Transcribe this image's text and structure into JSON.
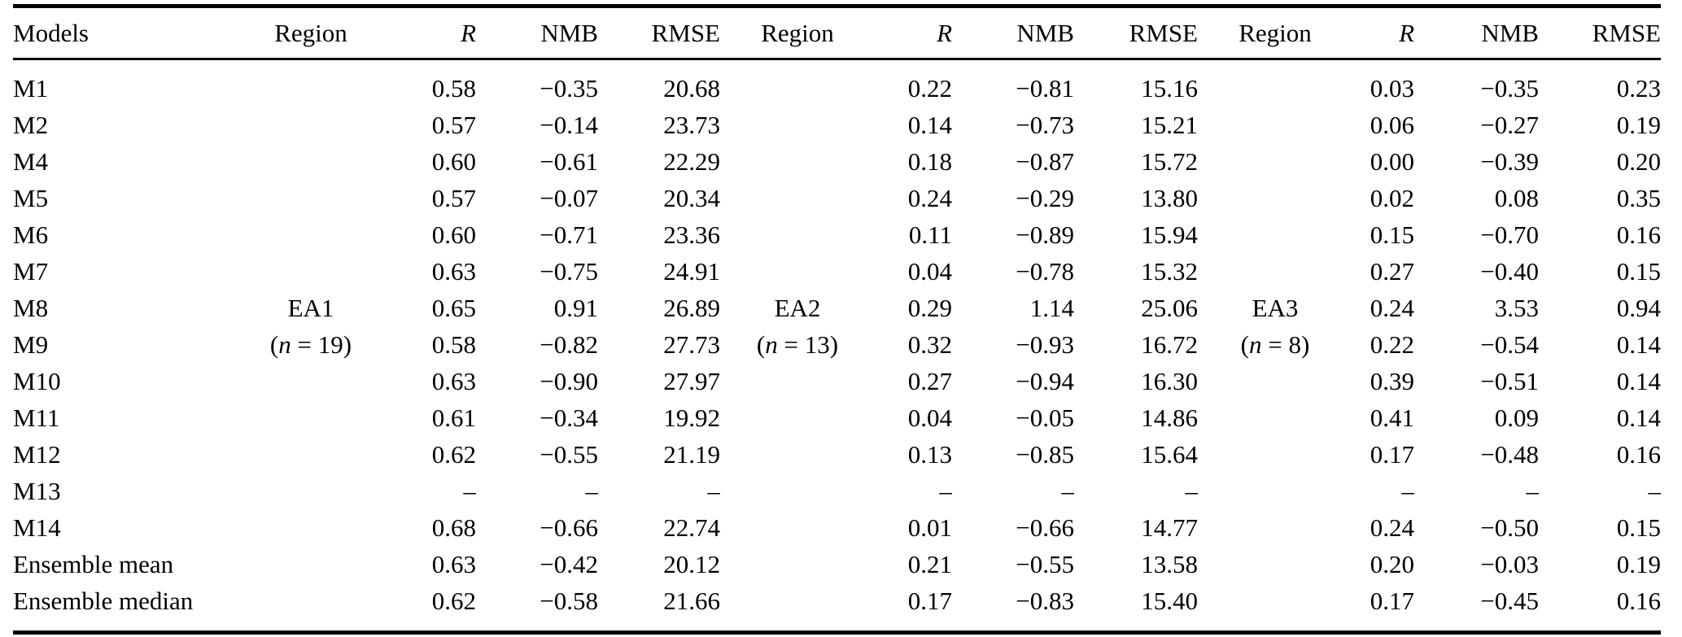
{
  "table": {
    "header": [
      "Models",
      "Region",
      "R",
      "NMB",
      "RMSE",
      "Region",
      "R",
      "NMB",
      "RMSE",
      "Region",
      "R",
      "NMB",
      "RMSE"
    ],
    "region_groups": [
      {
        "label": "EA1",
        "n_label": "(n = 19)"
      },
      {
        "label": "EA2",
        "n_label": "(n = 13)"
      },
      {
        "label": "EA3",
        "n_label": "(n = 8)"
      }
    ],
    "rows": [
      [
        "M1",
        "",
        "0.58",
        "−0.35",
        "20.68",
        "",
        "0.22",
        "−0.81",
        "15.16",
        "",
        "0.03",
        "−0.35",
        "0.23"
      ],
      [
        "M2",
        "",
        "0.57",
        "−0.14",
        "23.73",
        "",
        "0.14",
        "−0.73",
        "15.21",
        "",
        "0.06",
        "−0.27",
        "0.19"
      ],
      [
        "M4",
        "",
        "0.60",
        "−0.61",
        "22.29",
        "",
        "0.18",
        "−0.87",
        "15.72",
        "",
        "0.00",
        "−0.39",
        "0.20"
      ],
      [
        "M5",
        "",
        "0.57",
        "−0.07",
        "20.34",
        "",
        "0.24",
        "−0.29",
        "13.80",
        "",
        "0.02",
        "0.08",
        "0.35"
      ],
      [
        "M6",
        "",
        "0.60",
        "−0.71",
        "23.36",
        "",
        "0.11",
        "−0.89",
        "15.94",
        "",
        "0.15",
        "−0.70",
        "0.16"
      ],
      [
        "M7",
        "",
        "0.63",
        "−0.75",
        "24.91",
        "",
        "0.04",
        "−0.78",
        "15.32",
        "",
        "0.27",
        "−0.40",
        "0.15"
      ],
      [
        "M8",
        "EA1",
        "0.65",
        "0.91",
        "26.89",
        "EA2",
        "0.29",
        "1.14",
        "25.06",
        "EA3",
        "0.24",
        "3.53",
        "0.94"
      ],
      [
        "M9",
        "(n = 19)",
        "0.58",
        "−0.82",
        "27.73",
        "(n = 13)",
        "0.32",
        "−0.93",
        "16.72",
        "(n = 8)",
        "0.22",
        "−0.54",
        "0.14"
      ],
      [
        "M10",
        "",
        "0.63",
        "−0.90",
        "27.97",
        "",
        "0.27",
        "−0.94",
        "16.30",
        "",
        "0.39",
        "−0.51",
        "0.14"
      ],
      [
        "M11",
        "",
        "0.61",
        "−0.34",
        "19.92",
        "",
        "0.04",
        "−0.05",
        "14.86",
        "",
        "0.41",
        "0.09",
        "0.14"
      ],
      [
        "M12",
        "",
        "0.62",
        "−0.55",
        "21.19",
        "",
        "0.13",
        "−0.85",
        "15.64",
        "",
        "0.17",
        "−0.48",
        "0.16"
      ],
      [
        "M13",
        "",
        "–",
        "–",
        "–",
        "",
        "–",
        "–",
        "–",
        "",
        "–",
        "–",
        "–"
      ],
      [
        "M14",
        "",
        "0.68",
        "−0.66",
        "22.74",
        "",
        "0.01",
        "−0.66",
        "14.77",
        "",
        "0.24",
        "−0.50",
        "0.15"
      ],
      [
        "Ensemble mean",
        "",
        "0.63",
        "−0.42",
        "20.12",
        "",
        "0.21",
        "−0.55",
        "13.58",
        "",
        "0.20",
        "−0.03",
        "0.19"
      ],
      [
        "Ensemble median",
        "",
        "0.62",
        "−0.58",
        "21.66",
        "",
        "0.17",
        "−0.83",
        "15.40",
        "",
        "0.17",
        "−0.45",
        "0.16"
      ]
    ]
  }
}
